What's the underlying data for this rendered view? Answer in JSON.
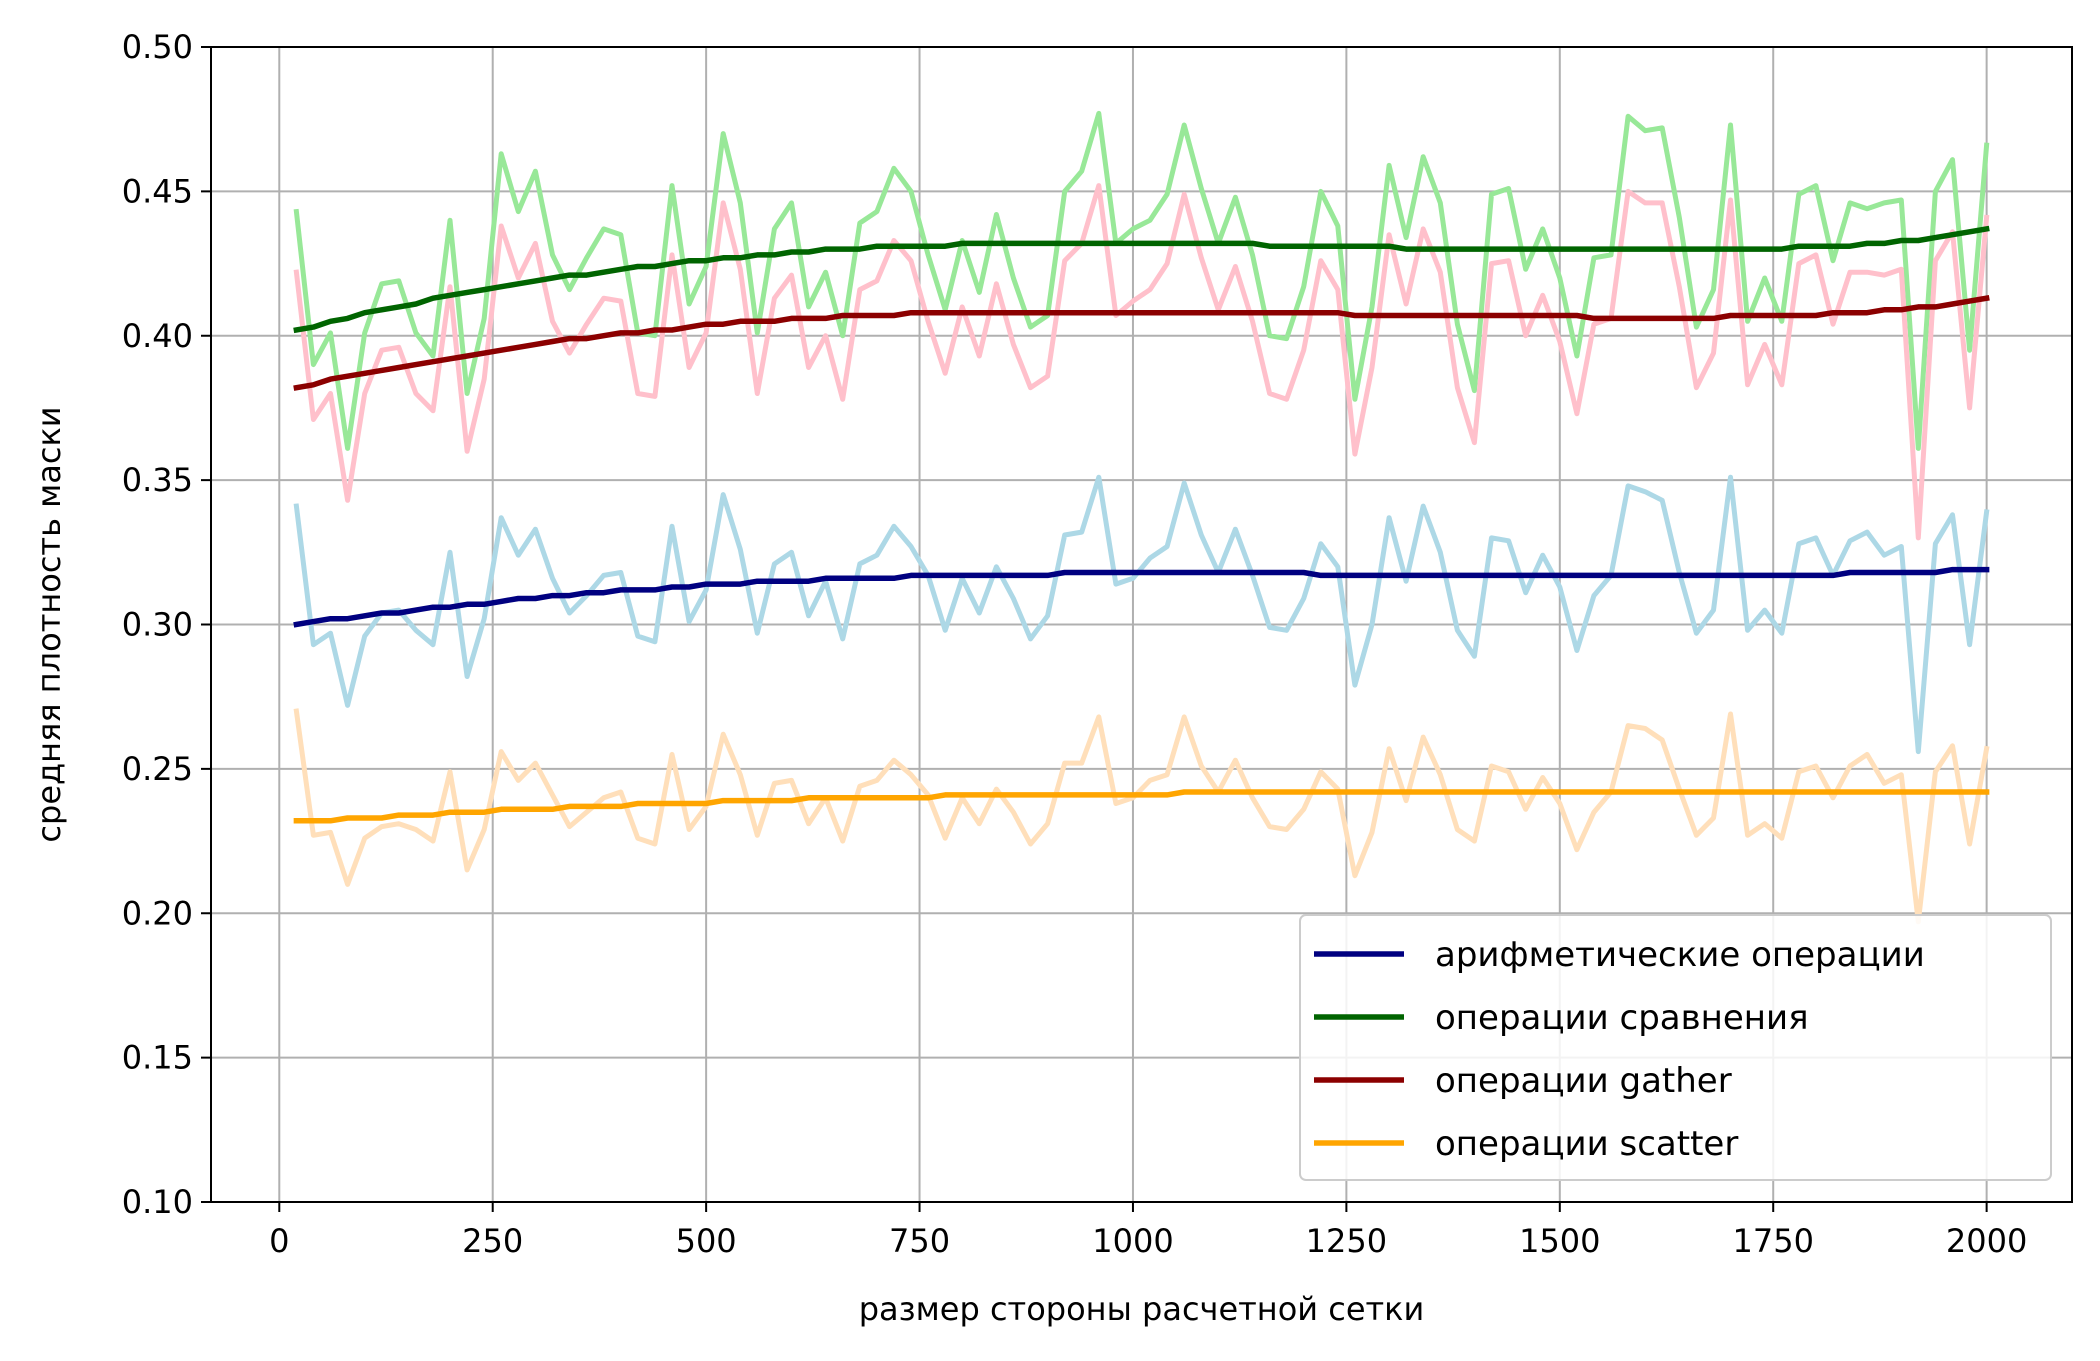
{
  "chart_data": {
    "type": "line",
    "xlabel": "размер стороны расчетной сетки",
    "ylabel": "средняя плотность маски",
    "xlim": [
      -80,
      2100
    ],
    "ylim": [
      0.1,
      0.5
    ],
    "xticks": [
      0,
      250,
      500,
      750,
      1000,
      1250,
      1500,
      1750,
      2000
    ],
    "xtick_labels": [
      "0",
      "250",
      "500",
      "750",
      "1000",
      "1250",
      "1500",
      "1750",
      "2000"
    ],
    "yticks": [
      0.1,
      0.15,
      0.2,
      0.25,
      0.3,
      0.35,
      0.4,
      0.45,
      0.5
    ],
    "ytick_labels": [
      "0.10",
      "0.15",
      "0.20",
      "0.25",
      "0.30",
      "0.35",
      "0.40",
      "0.45",
      "0.50"
    ],
    "grid": true,
    "legend_position": "lower-right",
    "x": [
      20,
      40,
      60,
      80,
      100,
      120,
      140,
      160,
      180,
      200,
      220,
      240,
      260,
      280,
      300,
      320,
      340,
      360,
      380,
      400,
      420,
      440,
      460,
      480,
      500,
      520,
      540,
      560,
      580,
      600,
      620,
      640,
      660,
      680,
      700,
      720,
      740,
      760,
      780,
      800,
      820,
      840,
      860,
      880,
      900,
      920,
      940,
      960,
      980,
      1000,
      1020,
      1040,
      1060,
      1080,
      1100,
      1120,
      1140,
      1160,
      1180,
      1200,
      1220,
      1240,
      1260,
      1280,
      1300,
      1320,
      1340,
      1360,
      1380,
      1400,
      1420,
      1440,
      1460,
      1480,
      1500,
      1520,
      1540,
      1560,
      1580,
      1600,
      1620,
      1640,
      1660,
      1680,
      1700,
      1720,
      1740,
      1760,
      1780,
      1800,
      1820,
      1840,
      1860,
      1880,
      1900,
      1920,
      1940,
      1960,
      1980,
      2000
    ],
    "series": [
      {
        "name": "",
        "role": "raw",
        "color": "#add8e6",
        "values": [
          0.341,
          0.293,
          0.297,
          0.272,
          0.296,
          0.304,
          0.305,
          0.298,
          0.293,
          0.325,
          0.282,
          0.302,
          0.337,
          0.324,
          0.333,
          0.316,
          0.304,
          0.31,
          0.317,
          0.318,
          0.296,
          0.294,
          0.334,
          0.301,
          0.312,
          0.345,
          0.326,
          0.297,
          0.321,
          0.325,
          0.303,
          0.315,
          0.295,
          0.321,
          0.324,
          0.334,
          0.327,
          0.317,
          0.298,
          0.316,
          0.304,
          0.32,
          0.309,
          0.295,
          0.303,
          0.331,
          0.332,
          0.351,
          0.314,
          0.316,
          0.323,
          0.327,
          0.349,
          0.331,
          0.318,
          0.333,
          0.317,
          0.299,
          0.298,
          0.309,
          0.328,
          0.32,
          0.279,
          0.3,
          0.337,
          0.315,
          0.341,
          0.325,
          0.298,
          0.289,
          0.33,
          0.329,
          0.311,
          0.324,
          0.313,
          0.291,
          0.31,
          0.317,
          0.348,
          0.346,
          0.343,
          0.318,
          0.297,
          0.305,
          0.351,
          0.298,
          0.305,
          0.297,
          0.328,
          0.33,
          0.317,
          0.329,
          0.332,
          0.324,
          0.327,
          0.256,
          0.328,
          0.338,
          0.293,
          0.339
        ]
      },
      {
        "name": "",
        "role": "raw",
        "color": "#ffdfba",
        "values": [
          0.27,
          0.227,
          0.228,
          0.21,
          0.226,
          0.23,
          0.231,
          0.229,
          0.225,
          0.249,
          0.215,
          0.229,
          0.256,
          0.246,
          0.252,
          0.241,
          0.23,
          0.235,
          0.24,
          0.242,
          0.226,
          0.224,
          0.255,
          0.229,
          0.237,
          0.262,
          0.248,
          0.227,
          0.245,
          0.246,
          0.231,
          0.24,
          0.225,
          0.244,
          0.246,
          0.253,
          0.248,
          0.241,
          0.226,
          0.24,
          0.231,
          0.243,
          0.235,
          0.224,
          0.231,
          0.252,
          0.252,
          0.268,
          0.238,
          0.24,
          0.246,
          0.248,
          0.268,
          0.251,
          0.242,
          0.253,
          0.24,
          0.23,
          0.229,
          0.236,
          0.249,
          0.243,
          0.213,
          0.228,
          0.257,
          0.239,
          0.261,
          0.248,
          0.229,
          0.225,
          0.251,
          0.249,
          0.236,
          0.247,
          0.238,
          0.222,
          0.235,
          0.242,
          0.265,
          0.264,
          0.26,
          0.243,
          0.227,
          0.233,
          0.269,
          0.227,
          0.231,
          0.226,
          0.249,
          0.251,
          0.24,
          0.251,
          0.255,
          0.245,
          0.248,
          0.197,
          0.249,
          0.258,
          0.224,
          0.257
        ]
      },
      {
        "name": "",
        "role": "raw",
        "color": "#98e898",
        "values": [
          0.443,
          0.39,
          0.401,
          0.361,
          0.401,
          0.418,
          0.419,
          0.401,
          0.393,
          0.44,
          0.38,
          0.406,
          0.463,
          0.443,
          0.457,
          0.428,
          0.416,
          0.427,
          0.437,
          0.435,
          0.401,
          0.4,
          0.452,
          0.411,
          0.424,
          0.47,
          0.446,
          0.401,
          0.437,
          0.446,
          0.41,
          0.422,
          0.4,
          0.439,
          0.443,
          0.458,
          0.45,
          0.428,
          0.409,
          0.433,
          0.415,
          0.442,
          0.42,
          0.403,
          0.407,
          0.45,
          0.457,
          0.477,
          0.432,
          0.437,
          0.44,
          0.449,
          0.473,
          0.451,
          0.432,
          0.448,
          0.428,
          0.4,
          0.399,
          0.417,
          0.45,
          0.438,
          0.378,
          0.41,
          0.459,
          0.434,
          0.462,
          0.446,
          0.404,
          0.381,
          0.449,
          0.451,
          0.423,
          0.437,
          0.42,
          0.393,
          0.427,
          0.428,
          0.476,
          0.471,
          0.472,
          0.441,
          0.403,
          0.416,
          0.473,
          0.405,
          0.42,
          0.405,
          0.449,
          0.452,
          0.426,
          0.446,
          0.444,
          0.446,
          0.447,
          0.361,
          0.45,
          0.461,
          0.395,
          0.466
        ]
      },
      {
        "name": "",
        "role": "raw",
        "color": "#ffc0cb",
        "values": [
          0.422,
          0.371,
          0.38,
          0.343,
          0.38,
          0.395,
          0.396,
          0.38,
          0.374,
          0.417,
          0.36,
          0.385,
          0.438,
          0.42,
          0.432,
          0.405,
          0.394,
          0.404,
          0.413,
          0.412,
          0.38,
          0.379,
          0.428,
          0.389,
          0.401,
          0.446,
          0.423,
          0.38,
          0.413,
          0.421,
          0.389,
          0.4,
          0.378,
          0.416,
          0.419,
          0.433,
          0.426,
          0.405,
          0.387,
          0.41,
          0.393,
          0.418,
          0.397,
          0.382,
          0.386,
          0.426,
          0.432,
          0.452,
          0.407,
          0.412,
          0.416,
          0.425,
          0.449,
          0.427,
          0.409,
          0.424,
          0.405,
          0.38,
          0.378,
          0.395,
          0.426,
          0.416,
          0.359,
          0.389,
          0.435,
          0.411,
          0.437,
          0.422,
          0.382,
          0.363,
          0.425,
          0.426,
          0.4,
          0.414,
          0.398,
          0.373,
          0.404,
          0.406,
          0.45,
          0.446,
          0.446,
          0.417,
          0.382,
          0.394,
          0.447,
          0.383,
          0.397,
          0.383,
          0.425,
          0.428,
          0.404,
          0.422,
          0.422,
          0.421,
          0.423,
          0.33,
          0.426,
          0.436,
          0.375,
          0.441
        ]
      },
      {
        "name": "арифметические операции",
        "role": "trend",
        "color": "#000080",
        "values": [
          0.3,
          0.301,
          0.302,
          0.302,
          0.303,
          0.304,
          0.304,
          0.305,
          0.306,
          0.306,
          0.307,
          0.307,
          0.308,
          0.309,
          0.309,
          0.31,
          0.31,
          0.311,
          0.311,
          0.312,
          0.312,
          0.312,
          0.313,
          0.313,
          0.314,
          0.314,
          0.314,
          0.315,
          0.315,
          0.315,
          0.315,
          0.316,
          0.316,
          0.316,
          0.316,
          0.316,
          0.317,
          0.317,
          0.317,
          0.317,
          0.317,
          0.317,
          0.317,
          0.317,
          0.317,
          0.318,
          0.318,
          0.318,
          0.318,
          0.318,
          0.318,
          0.318,
          0.318,
          0.318,
          0.318,
          0.318,
          0.318,
          0.318,
          0.318,
          0.318,
          0.317,
          0.317,
          0.317,
          0.317,
          0.317,
          0.317,
          0.317,
          0.317,
          0.317,
          0.317,
          0.317,
          0.317,
          0.317,
          0.317,
          0.317,
          0.317,
          0.317,
          0.317,
          0.317,
          0.317,
          0.317,
          0.317,
          0.317,
          0.317,
          0.317,
          0.317,
          0.317,
          0.317,
          0.317,
          0.317,
          0.317,
          0.318,
          0.318,
          0.318,
          0.318,
          0.318,
          0.318,
          0.319,
          0.319,
          0.319
        ]
      },
      {
        "name": "операции сравнения",
        "role": "trend",
        "color": "#006400",
        "values": [
          0.402,
          0.403,
          0.405,
          0.406,
          0.408,
          0.409,
          0.41,
          0.411,
          0.413,
          0.414,
          0.415,
          0.416,
          0.417,
          0.418,
          0.419,
          0.42,
          0.421,
          0.421,
          0.422,
          0.423,
          0.424,
          0.424,
          0.425,
          0.426,
          0.426,
          0.427,
          0.427,
          0.428,
          0.428,
          0.429,
          0.429,
          0.43,
          0.43,
          0.43,
          0.431,
          0.431,
          0.431,
          0.431,
          0.431,
          0.432,
          0.432,
          0.432,
          0.432,
          0.432,
          0.432,
          0.432,
          0.432,
          0.432,
          0.432,
          0.432,
          0.432,
          0.432,
          0.432,
          0.432,
          0.432,
          0.432,
          0.432,
          0.431,
          0.431,
          0.431,
          0.431,
          0.431,
          0.431,
          0.431,
          0.431,
          0.43,
          0.43,
          0.43,
          0.43,
          0.43,
          0.43,
          0.43,
          0.43,
          0.43,
          0.43,
          0.43,
          0.43,
          0.43,
          0.43,
          0.43,
          0.43,
          0.43,
          0.43,
          0.43,
          0.43,
          0.43,
          0.43,
          0.43,
          0.431,
          0.431,
          0.431,
          0.431,
          0.432,
          0.432,
          0.433,
          0.433,
          0.434,
          0.435,
          0.436,
          0.437
        ]
      },
      {
        "name": "операции gather",
        "role": "trend",
        "color": "#8b0000",
        "values": [
          0.382,
          0.383,
          0.385,
          0.386,
          0.387,
          0.388,
          0.389,
          0.39,
          0.391,
          0.392,
          0.393,
          0.394,
          0.395,
          0.396,
          0.397,
          0.398,
          0.399,
          0.399,
          0.4,
          0.401,
          0.401,
          0.402,
          0.402,
          0.403,
          0.404,
          0.404,
          0.405,
          0.405,
          0.405,
          0.406,
          0.406,
          0.406,
          0.407,
          0.407,
          0.407,
          0.407,
          0.408,
          0.408,
          0.408,
          0.408,
          0.408,
          0.408,
          0.408,
          0.408,
          0.408,
          0.408,
          0.408,
          0.408,
          0.408,
          0.408,
          0.408,
          0.408,
          0.408,
          0.408,
          0.408,
          0.408,
          0.408,
          0.408,
          0.408,
          0.408,
          0.408,
          0.408,
          0.407,
          0.407,
          0.407,
          0.407,
          0.407,
          0.407,
          0.407,
          0.407,
          0.407,
          0.407,
          0.407,
          0.407,
          0.407,
          0.407,
          0.406,
          0.406,
          0.406,
          0.406,
          0.406,
          0.406,
          0.406,
          0.406,
          0.407,
          0.407,
          0.407,
          0.407,
          0.407,
          0.407,
          0.408,
          0.408,
          0.408,
          0.409,
          0.409,
          0.41,
          0.41,
          0.411,
          0.412,
          0.413
        ]
      },
      {
        "name": "операции scatter",
        "role": "trend",
        "color": "#ffa500",
        "values": [
          0.232,
          0.232,
          0.232,
          0.233,
          0.233,
          0.233,
          0.234,
          0.234,
          0.234,
          0.235,
          0.235,
          0.235,
          0.236,
          0.236,
          0.236,
          0.236,
          0.237,
          0.237,
          0.237,
          0.237,
          0.238,
          0.238,
          0.238,
          0.238,
          0.238,
          0.239,
          0.239,
          0.239,
          0.239,
          0.239,
          0.24,
          0.24,
          0.24,
          0.24,
          0.24,
          0.24,
          0.24,
          0.24,
          0.241,
          0.241,
          0.241,
          0.241,
          0.241,
          0.241,
          0.241,
          0.241,
          0.241,
          0.241,
          0.241,
          0.241,
          0.241,
          0.241,
          0.242,
          0.242,
          0.242,
          0.242,
          0.242,
          0.242,
          0.242,
          0.242,
          0.242,
          0.242,
          0.242,
          0.242,
          0.242,
          0.242,
          0.242,
          0.242,
          0.242,
          0.242,
          0.242,
          0.242,
          0.242,
          0.242,
          0.242,
          0.242,
          0.242,
          0.242,
          0.242,
          0.242,
          0.242,
          0.242,
          0.242,
          0.242,
          0.242,
          0.242,
          0.242,
          0.242,
          0.242,
          0.242,
          0.242,
          0.242,
          0.242,
          0.242,
          0.242,
          0.242,
          0.242,
          0.242,
          0.242,
          0.242
        ]
      }
    ]
  }
}
